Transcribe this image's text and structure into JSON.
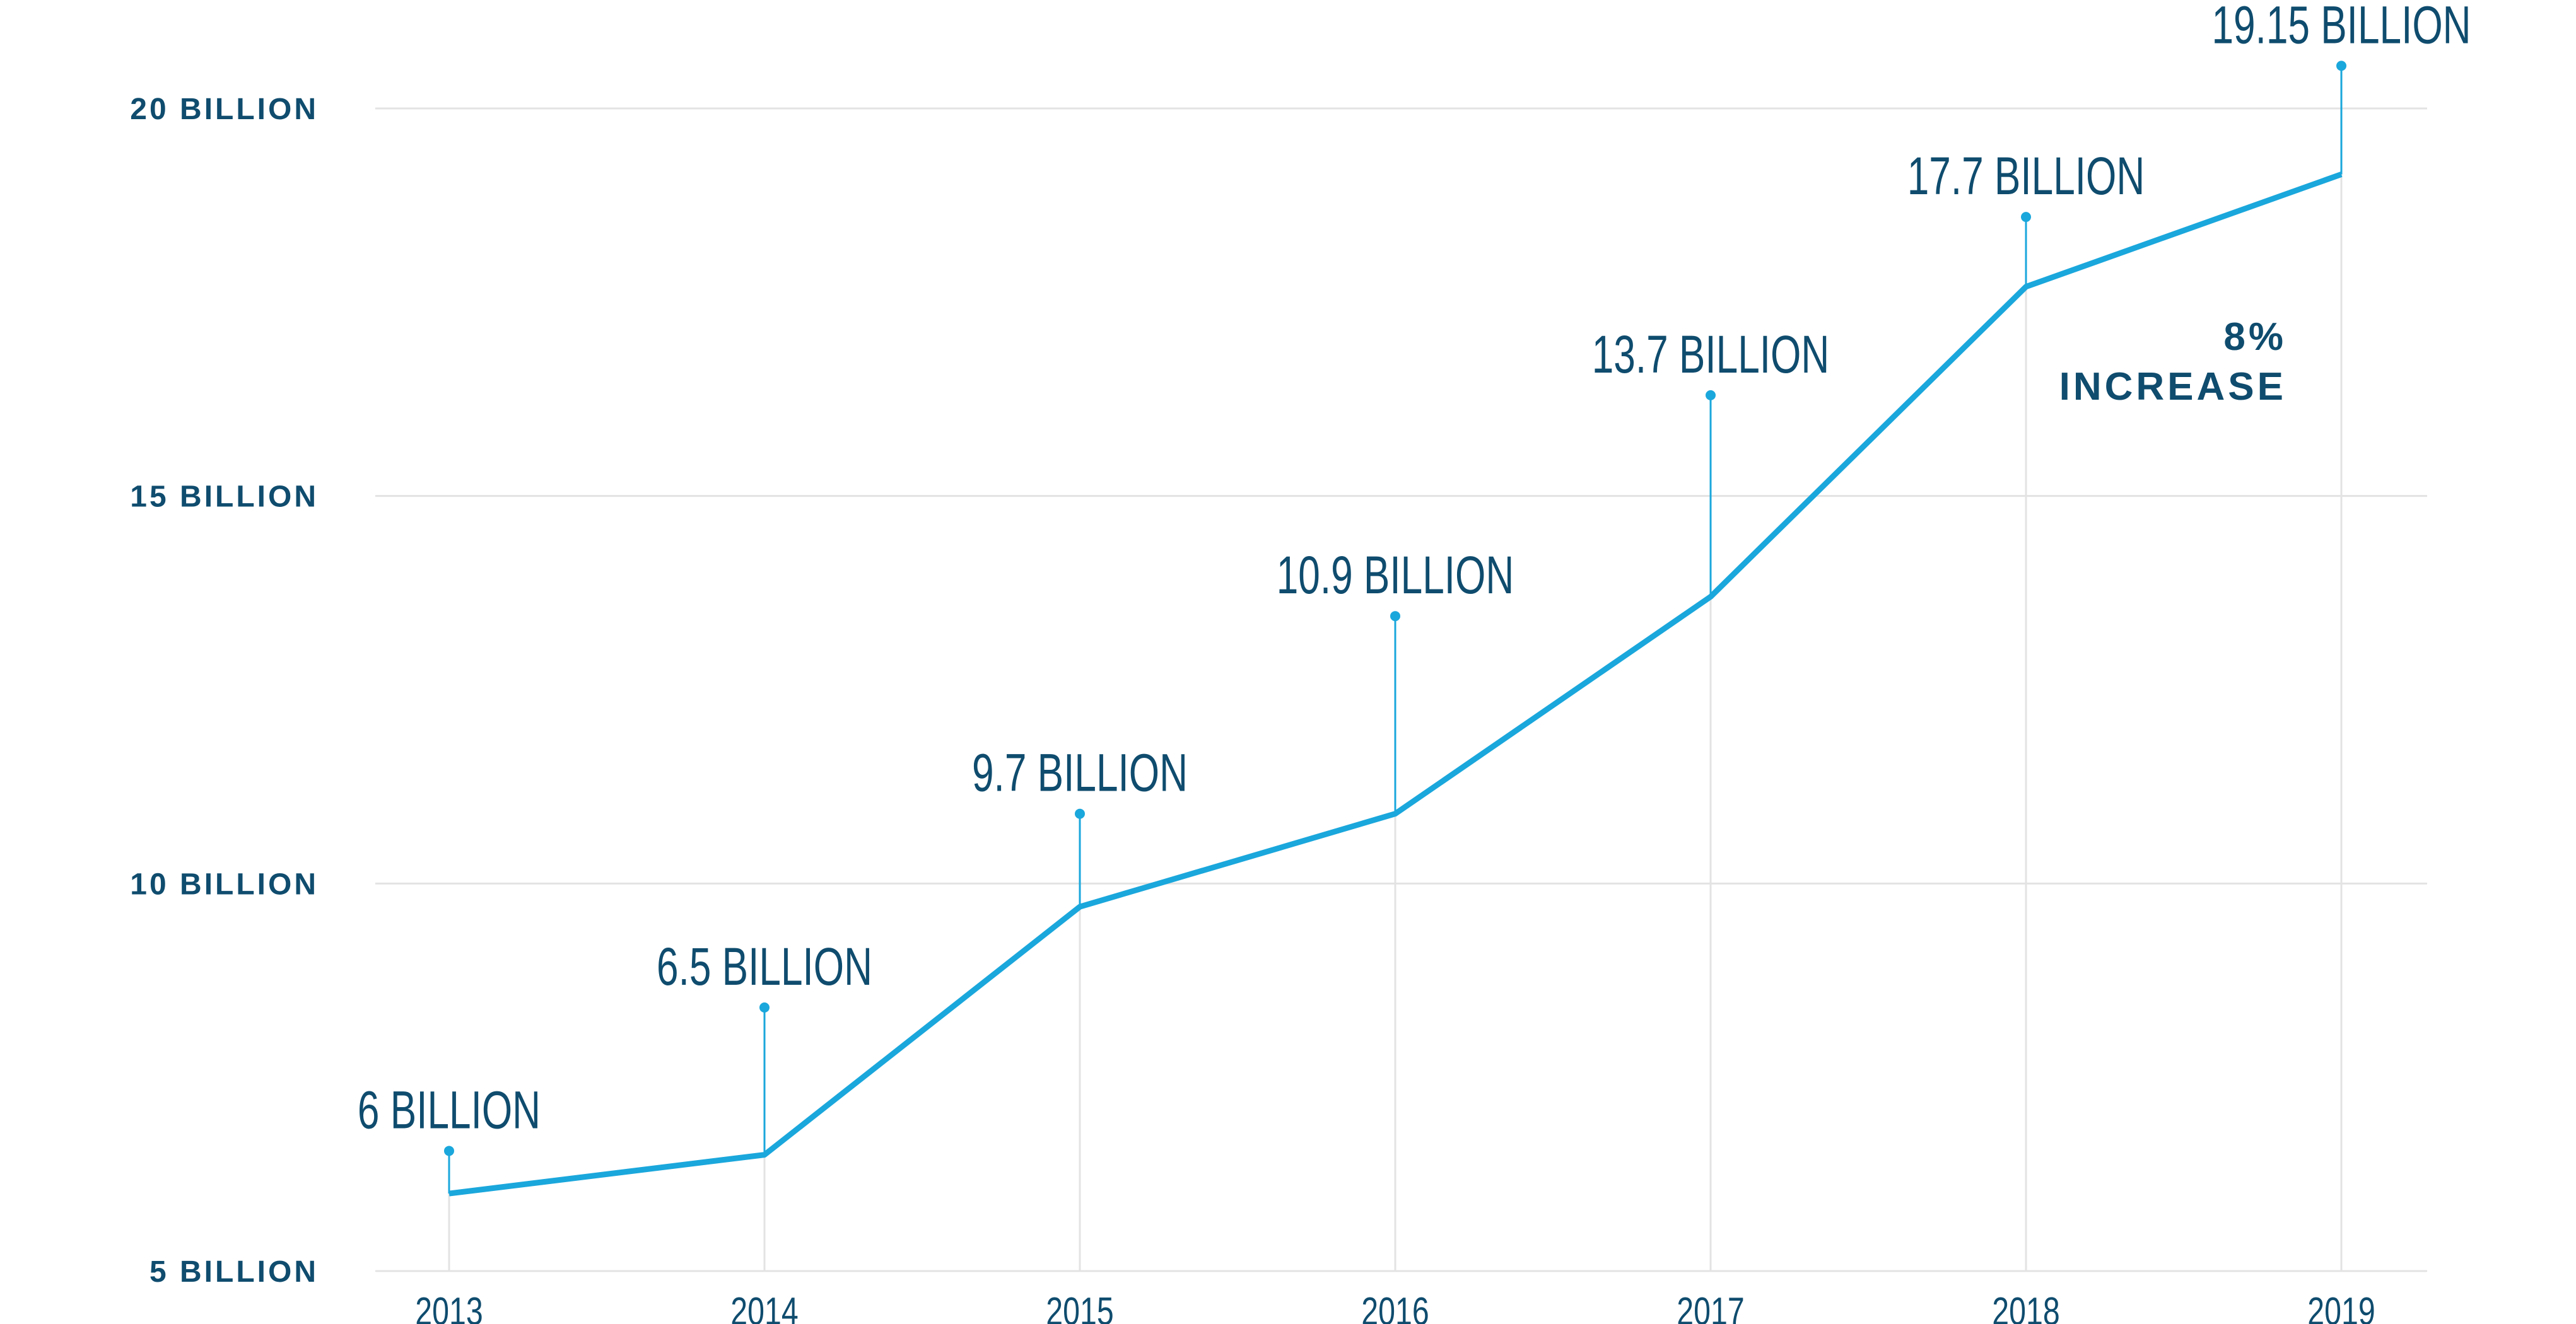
{
  "chart_data": {
    "type": "line",
    "title": "",
    "xlabel": "",
    "ylabel": "",
    "categories": [
      "2013",
      "2014",
      "2015",
      "2016",
      "2017",
      "2018",
      "2019"
    ],
    "values": [
      6,
      6.5,
      9.7,
      10.9,
      13.7,
      17.7,
      19.15
    ],
    "data_labels": [
      "6 BILLION",
      "6.5 BILLION",
      "9.7 BILLION",
      "10.9 BILLION",
      "13.7 BILLION",
      "17.7 BILLION",
      "19.15 BILLION"
    ],
    "label_anchor_values": [
      6.55,
      8.4,
      10.9,
      13.45,
      16.3,
      18.6,
      20.55
    ],
    "yticks": [
      5,
      10,
      15,
      20
    ],
    "ytick_labels": [
      "5 BILLION",
      "10 BILLION",
      "15 BILLION",
      "20 BILLION"
    ],
    "ylim": [
      5,
      20
    ],
    "grid": true,
    "legend": "none",
    "annotation": {
      "line1": "8%",
      "line2": "INCREASE"
    },
    "colors": {
      "line": "#1aa7dc",
      "text": "#0f4c6e",
      "grid": "#e3e3e3"
    }
  }
}
